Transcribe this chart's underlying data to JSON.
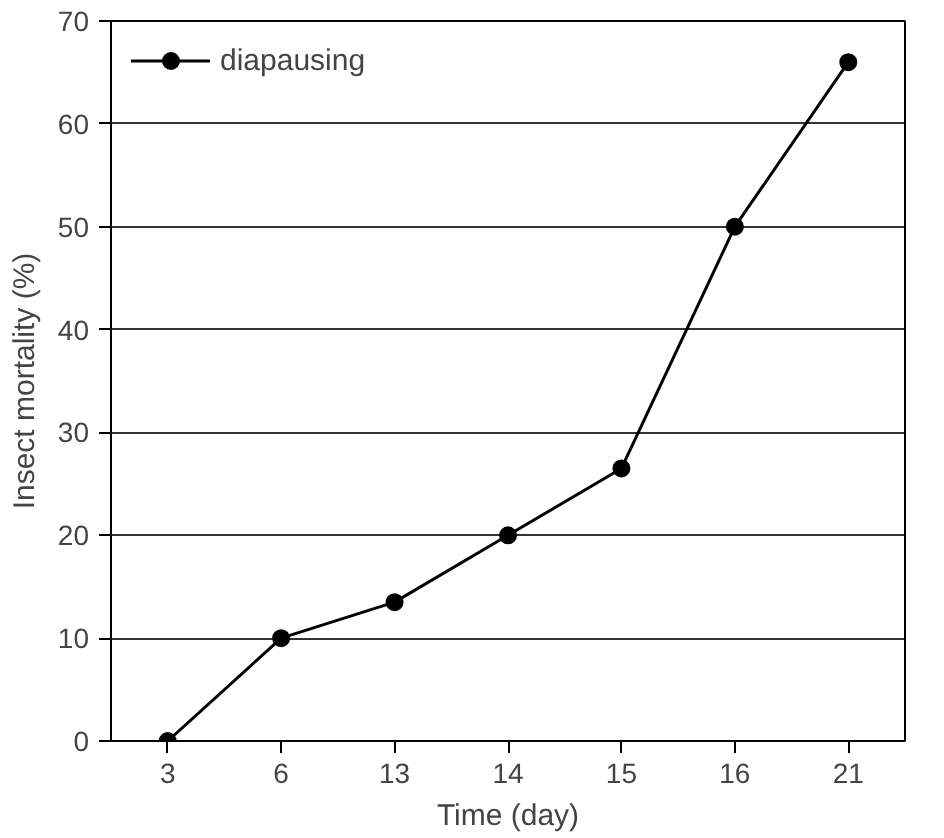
{
  "chart_data": {
    "type": "line",
    "xlabel": "Time (day)",
    "ylabel": "Insect mortality (%)",
    "categories": [
      "3",
      "6",
      "13",
      "14",
      "15",
      "16",
      "21"
    ],
    "series": [
      {
        "name": "diapausing",
        "color": "#000000",
        "values": [
          0,
          10,
          13.5,
          20,
          26.5,
          50,
          66
        ]
      }
    ],
    "ylim": [
      0,
      70
    ],
    "yticks": [
      0,
      10,
      20,
      30,
      40,
      50,
      60,
      70
    ],
    "grid": "y",
    "legend": "top left",
    "marker": "circle",
    "line_style": "solid"
  }
}
